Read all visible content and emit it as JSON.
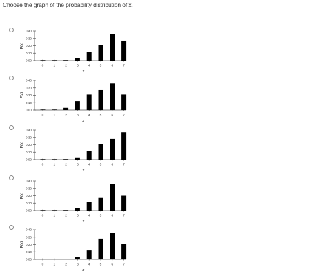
{
  "question": {
    "prompt": "Choose the graph of the probability distribution of x."
  },
  "options": [
    {
      "chart_data": {
        "type": "bar",
        "categories": [
          "0",
          "1",
          "2",
          "3",
          "4",
          "5",
          "6",
          "7"
        ],
        "values": [
          0,
          0.002,
          0.007,
          0.03,
          0.12,
          0.21,
          0.36,
          0.27
        ],
        "xlabel": "x",
        "ylabel": "P(x)",
        "ylim": [
          0,
          0.4
        ],
        "yticks": [
          "0.00",
          "0.10",
          "0.20",
          "0.30",
          "0.40"
        ]
      }
    },
    {
      "chart_data": {
        "type": "bar",
        "categories": [
          "0",
          "1",
          "2",
          "3",
          "4",
          "5",
          "6",
          "7"
        ],
        "values": [
          0.001,
          0.005,
          0.03,
          0.12,
          0.21,
          0.27,
          0.36,
          0.21
        ],
        "xlabel": "x",
        "ylabel": "P(x)",
        "ylim": [
          0,
          0.4
        ],
        "yticks": [
          "0.00",
          "0.10",
          "0.20",
          "0.30",
          "0.40"
        ]
      }
    },
    {
      "chart_data": {
        "type": "bar",
        "categories": [
          "0",
          "1",
          "2",
          "3",
          "4",
          "5",
          "6",
          "7"
        ],
        "values": [
          0,
          0.002,
          0.007,
          0.03,
          0.12,
          0.21,
          0.28,
          0.37
        ],
        "xlabel": "x",
        "ylabel": "P(x)",
        "ylim": [
          0,
          0.4
        ],
        "yticks": [
          "0.00",
          "0.10",
          "0.20",
          "0.30",
          "0.40"
        ]
      }
    },
    {
      "chart_data": {
        "type": "bar",
        "categories": [
          "0",
          "1",
          "2",
          "3",
          "4",
          "5",
          "6",
          "7"
        ],
        "values": [
          0,
          0.002,
          0.007,
          0.03,
          0.12,
          0.17,
          0.36,
          0.2
        ],
        "xlabel": "x",
        "ylabel": "P(x)",
        "ylim": [
          0,
          0.4
        ],
        "yticks": [
          "0.00",
          "0.10",
          "0.20",
          "0.30",
          "0.40"
        ]
      }
    },
    {
      "chart_data": {
        "type": "bar",
        "categories": [
          "0",
          "1",
          "2",
          "3",
          "4",
          "5",
          "6",
          "7"
        ],
        "values": [
          0,
          0.002,
          0.007,
          0.03,
          0.12,
          0.28,
          0.36,
          0.21
        ],
        "xlabel": "x",
        "ylabel": "P(x)",
        "ylim": [
          0,
          0.4
        ],
        "yticks": [
          "0.00",
          "0.10",
          "0.20",
          "0.30",
          "0.40"
        ]
      }
    }
  ]
}
